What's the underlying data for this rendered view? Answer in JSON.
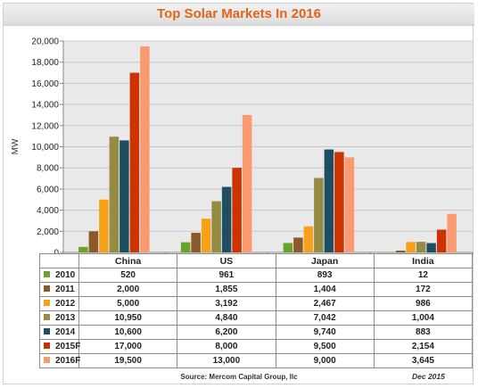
{
  "title": "Top Solar Markets In 2016",
  "source": "Source: Mercom Capital Group, llc",
  "date": "Dec 2015",
  "chart_data": {
    "type": "bar",
    "title": "Top Solar Markets In 2016",
    "ylabel": "MW",
    "xlabel": "",
    "ylim": [
      0,
      20000
    ],
    "yticks": [
      0,
      2000,
      4000,
      6000,
      8000,
      10000,
      12000,
      14000,
      16000,
      18000,
      20000
    ],
    "ytick_labels": [
      "0",
      "2,000",
      "4,000",
      "6,000",
      "8,000",
      "10,000",
      "12,000",
      "14,000",
      "16,000",
      "18,000",
      "20,000"
    ],
    "grid": true,
    "legend": "data-table-below",
    "categories": [
      "China",
      "US",
      "Japan",
      "India"
    ],
    "series": [
      {
        "name": "2010",
        "color": "#6aa32b",
        "values": [
          520,
          961,
          893,
          12
        ],
        "labels": [
          "520",
          "961",
          "893",
          "12"
        ]
      },
      {
        "name": "2011",
        "color": "#8b5a2b",
        "values": [
          2000,
          1855,
          1404,
          172
        ],
        "labels": [
          "2,000",
          "1,855",
          "1,404",
          "172"
        ]
      },
      {
        "name": "2012",
        "color": "#f7a01a",
        "values": [
          5000,
          3192,
          2467,
          986
        ],
        "labels": [
          "5,000",
          "3,192",
          "2,467",
          "986"
        ]
      },
      {
        "name": "2013",
        "color": "#958b45",
        "values": [
          10950,
          4840,
          7042,
          1004
        ],
        "labels": [
          "10,950",
          "4,840",
          "7,042",
          "1,004"
        ]
      },
      {
        "name": "2014",
        "color": "#1d4f60",
        "values": [
          10600,
          6200,
          9740,
          883
        ],
        "labels": [
          "10,600",
          "6,200",
          "9,740",
          "883"
        ]
      },
      {
        "name": "2015F",
        "color": "#cc3300",
        "values": [
          17000,
          8000,
          9500,
          2154
        ],
        "labels": [
          "17,000",
          "8,000",
          "9,500",
          "2,154"
        ]
      },
      {
        "name": "2016F",
        "color": "#fa9a70",
        "values": [
          19500,
          13000,
          9000,
          3645
        ],
        "labels": [
          "19,500",
          "13,000",
          "9,000",
          "3,645"
        ]
      }
    ]
  }
}
